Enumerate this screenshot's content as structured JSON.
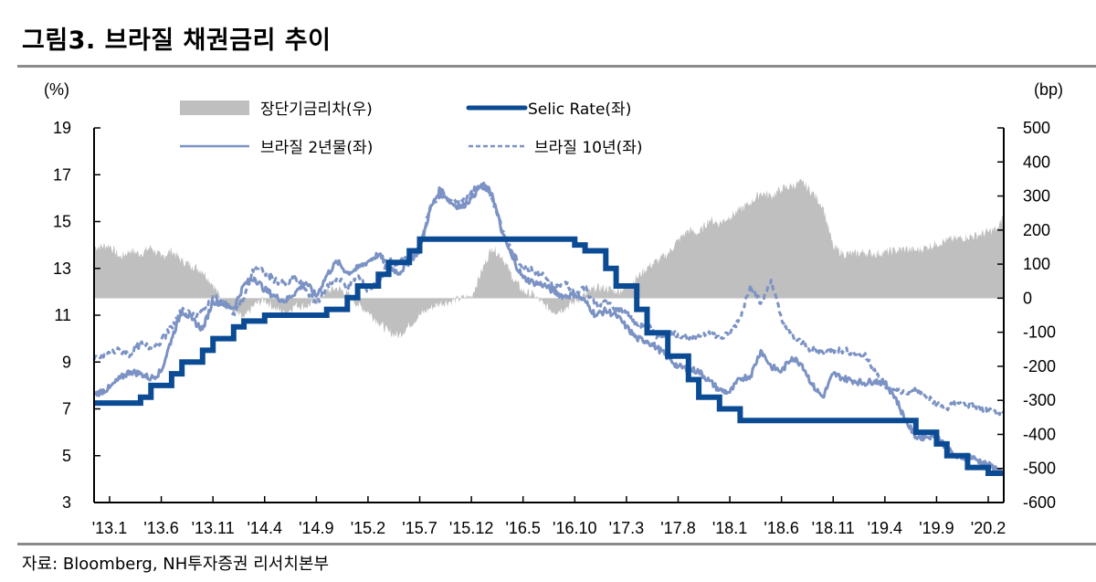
{
  "title": "그림3. 브라질 채권금리 추이",
  "source": "자료: Bloomberg, NH투자증권 리서치본부",
  "chart_data": {
    "type": "line",
    "title": "그림3. 브라질 채권금리 추이",
    "xlabel": "",
    "ylabel_left": "(%)",
    "ylabel_right": "(bp)",
    "ylim_left": [
      3,
      19
    ],
    "yticks_left": [
      19,
      17,
      15,
      13,
      11,
      9,
      7,
      5,
      3
    ],
    "ylim_right": [
      -600,
      500
    ],
    "yticks_right": [
      500,
      400,
      300,
      200,
      100,
      0,
      -100,
      -200,
      -300,
      -400,
      -500,
      -600
    ],
    "grid": false,
    "legend_position": "top",
    "x_tick_labels": [
      "'13.1",
      "'13.6",
      "'13.11",
      "'14.4",
      "'14.9",
      "'15.2",
      "'15.7",
      "'15.12",
      "'16.5",
      "'16.10",
      "'17.3",
      "'17.8",
      "'18.1",
      "'18.6",
      "'18.11",
      "'19.4",
      "'19.9",
      "'20.2"
    ],
    "x_unit": "months since 2013.1",
    "x_tick_positions": [
      0,
      5,
      10,
      15,
      20,
      25,
      30,
      35,
      40,
      45,
      50,
      55,
      60,
      65,
      70,
      75,
      80,
      85
    ],
    "xlim": [
      -1.5,
      86.5
    ],
    "series": [
      {
        "name": "장단기금리차(우)",
        "type": "area",
        "axis": "right",
        "color": "#bfbfbf",
        "x": [
          -1.5,
          0,
          1,
          2,
          3,
          4,
          5,
          6,
          7,
          8,
          9,
          10,
          11,
          12,
          13,
          14,
          15,
          16,
          17,
          18,
          19,
          20,
          21,
          22,
          23,
          24,
          25,
          26,
          27,
          28,
          29,
          30,
          31,
          32,
          33,
          34,
          35,
          36,
          37,
          38,
          39,
          40,
          41,
          42,
          43,
          44,
          45,
          46,
          47,
          48,
          49,
          50,
          51,
          52,
          53,
          54,
          55,
          56,
          57,
          58,
          59,
          60,
          61,
          62,
          63,
          64,
          65,
          66,
          67,
          68,
          69,
          70,
          71,
          72,
          73,
          74,
          75,
          76,
          77,
          78,
          79,
          80,
          81,
          82,
          83,
          84,
          85,
          86,
          86.5
        ],
        "values": [
          150,
          155,
          120,
          140,
          130,
          150,
          120,
          140,
          110,
          95,
          80,
          40,
          -15,
          -40,
          -60,
          -20,
          -5,
          -30,
          -45,
          -20,
          -25,
          -10,
          20,
          30,
          15,
          -20,
          -40,
          -70,
          -100,
          -110,
          -80,
          -50,
          -30,
          -15,
          -10,
          0,
          5,
          80,
          150,
          120,
          60,
          20,
          10,
          -20,
          -40,
          -30,
          -10,
          10,
          30,
          30,
          20,
          30,
          60,
          90,
          110,
          130,
          170,
          200,
          190,
          230,
          220,
          240,
          260,
          280,
          310,
          300,
          320,
          330,
          340,
          310,
          270,
          150,
          130,
          130,
          135,
          130,
          135,
          140,
          145,
          140,
          150,
          160,
          170,
          175,
          180,
          185,
          195,
          205,
          250
        ]
      },
      {
        "name": "Selic Rate(좌)",
        "type": "step",
        "axis": "left",
        "color": "#0a4b94",
        "x": [
          -1.5,
          3,
          4,
          6,
          7,
          9,
          10,
          12,
          13,
          15,
          21,
          23,
          24,
          26,
          27,
          29,
          30,
          45,
          46,
          48,
          49,
          51,
          52,
          54,
          56,
          57,
          59,
          61,
          78,
          80,
          81,
          83,
          85,
          86.5
        ],
        "values": [
          7.25,
          7.5,
          8.0,
          8.5,
          9.0,
          9.5,
          10.0,
          10.5,
          10.75,
          11.0,
          11.25,
          11.75,
          12.25,
          12.75,
          13.25,
          13.75,
          14.25,
          14.0,
          13.75,
          13.0,
          12.25,
          11.25,
          10.25,
          9.25,
          8.25,
          7.5,
          7.0,
          6.5,
          6.0,
          5.5,
          5.0,
          4.5,
          4.25,
          4.25
        ]
      },
      {
        "name": "브라질 2년물(좌)",
        "type": "line",
        "axis": "left",
        "color": "#7b92c4",
        "x": [
          -1.5,
          0,
          1,
          2,
          3,
          4,
          5,
          6,
          7,
          8,
          9,
          10,
          11,
          12,
          13,
          14,
          15,
          16,
          17,
          18,
          19,
          20,
          21,
          22,
          23,
          24,
          25,
          26,
          27,
          28,
          29,
          30,
          31,
          32,
          33,
          34,
          35,
          36,
          37,
          38,
          39,
          40,
          41,
          42,
          43,
          44,
          45,
          46,
          47,
          48,
          49,
          50,
          51,
          52,
          53,
          54,
          55,
          56,
          57,
          58,
          59,
          60,
          61,
          62,
          63,
          64,
          65,
          66,
          67,
          68,
          69,
          70,
          71,
          72,
          73,
          74,
          75,
          76,
          77,
          78,
          79,
          80,
          81,
          82,
          83,
          84,
          85,
          86,
          86.5
        ],
        "values": [
          7.6,
          7.9,
          8.3,
          8.6,
          8.5,
          8.3,
          8.6,
          10.0,
          11.2,
          10.8,
          10.4,
          11.6,
          11.5,
          11.3,
          12.3,
          12.6,
          12.1,
          11.8,
          11.6,
          12.0,
          12.4,
          11.8,
          12.7,
          13.3,
          12.8,
          13.0,
          13.3,
          13.6,
          13.1,
          12.8,
          13.3,
          13.8,
          15.5,
          16.4,
          15.8,
          15.6,
          16.0,
          16.6,
          16.2,
          14.5,
          13.4,
          12.6,
          12.4,
          12.3,
          12.0,
          11.8,
          11.9,
          11.6,
          11.0,
          11.2,
          11.0,
          10.5,
          10.0,
          9.9,
          9.6,
          9.2,
          8.8,
          8.7,
          8.6,
          8.2,
          7.8,
          7.7,
          8.3,
          8.4,
          9.5,
          8.8,
          8.6,
          9.2,
          8.9,
          8.0,
          7.5,
          8.5,
          8.3,
          8.2,
          8.1,
          8.2,
          8.1,
          7.5,
          6.5,
          5.8,
          5.8,
          5.9,
          5.3,
          4.9,
          5.0,
          4.8,
          4.6,
          4.4,
          4.2
        ]
      },
      {
        "name": "브라질 10년(좌)",
        "type": "dashed",
        "axis": "left",
        "color": "#7b92c4",
        "x": [
          -1.5,
          0,
          1,
          2,
          3,
          4,
          5,
          6,
          7,
          8,
          9,
          10,
          11,
          12,
          13,
          14,
          15,
          16,
          17,
          18,
          19,
          20,
          21,
          22,
          23,
          24,
          25,
          26,
          27,
          28,
          29,
          30,
          31,
          32,
          33,
          34,
          35,
          36,
          37,
          38,
          39,
          40,
          41,
          42,
          43,
          44,
          45,
          46,
          47,
          48,
          49,
          50,
          51,
          52,
          53,
          54,
          55,
          56,
          57,
          58,
          59,
          60,
          61,
          62,
          63,
          64,
          65,
          66,
          67,
          68,
          69,
          70,
          71,
          72,
          73,
          74,
          75,
          76,
          77,
          78,
          79,
          80,
          81,
          82,
          83,
          84,
          85,
          86,
          86.5
        ],
        "values": [
          9.1,
          9.4,
          9.5,
          9.3,
          9.8,
          9.6,
          9.9,
          10.5,
          11.2,
          11.0,
          11.1,
          11.8,
          11.5,
          11.1,
          11.7,
          13.1,
          12.8,
          12.5,
          12.3,
          12.6,
          12.1,
          11.5,
          12.2,
          12.6,
          12.2,
          12.7,
          12.0,
          12.4,
          13.3,
          13.2,
          13.5,
          13.8,
          15.6,
          16.2,
          15.9,
          15.8,
          16.3,
          16.5,
          16.0,
          14.6,
          13.6,
          13.1,
          12.9,
          12.7,
          12.2,
          12.4,
          12.0,
          12.2,
          11.4,
          11.6,
          11.3,
          11.2,
          10.6,
          10.6,
          10.1,
          10.2,
          10.2,
          10.0,
          10.1,
          10.3,
          10.0,
          10.2,
          10.9,
          12.3,
          11.5,
          12.5,
          10.8,
          10.1,
          9.8,
          9.5,
          9.4,
          9.5,
          9.5,
          9.4,
          9.3,
          8.7,
          8.0,
          7.8,
          7.7,
          7.8,
          7.5,
          7.2,
          7.0,
          7.3,
          7.2,
          7.0,
          6.9,
          6.8,
          6.8
        ]
      }
    ]
  }
}
